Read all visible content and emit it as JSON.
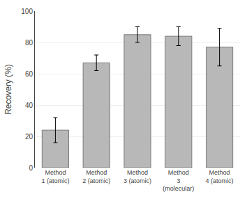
{
  "chart_data": {
    "type": "bar",
    "categories": [
      "Method\n1 (atomic)",
      "Method\n2 (atomic)",
      "Method\n3 (atomic)",
      "Method\n3\n(molecular)",
      "Method\n4 (atomic)"
    ],
    "values": [
      24,
      67,
      85,
      84,
      77
    ],
    "errors": [
      8,
      5,
      5,
      6,
      12
    ],
    "color": "#b8b8b8",
    "ylabel": "Recovery (%)",
    "ylim": [
      0,
      100
    ],
    "yticks": [
      0,
      20,
      40,
      60,
      80,
      100
    ],
    "grid": true
  }
}
